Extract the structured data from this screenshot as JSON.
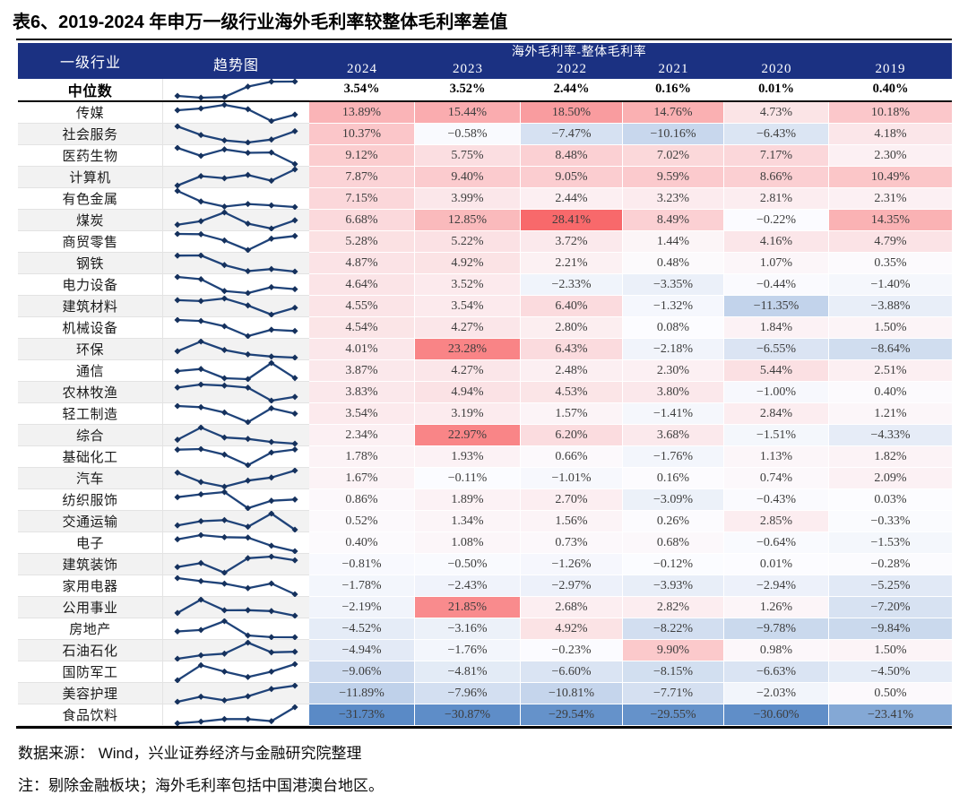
{
  "title": "表6、2019-2024 年申万一级行业海外毛利率较整体毛利率差值",
  "header": {
    "industry": "一级行业",
    "trend": "趋势图",
    "group": "海外毛利率-整体毛利率"
  },
  "footer": {
    "source": "数据来源：  Wind，兴业证券经济与金融研究院整理",
    "note": "注：剔除金融板块；海外毛利率包括中国港澳台地区。"
  },
  "colors": {
    "header_bg": "#1B3182",
    "heat_max_red": "#F8696B",
    "heat_mid_white": "#FCFCFF",
    "heat_min_blue": "#5A8AC6",
    "spark_line": "#1F4379",
    "spark_marker": "#15315D",
    "row_stripe": "#F2F2F2"
  },
  "heat_scale": {
    "min": -31.73,
    "mid": 0,
    "max": 28.41
  },
  "chart_data": {
    "type": "heatmap-table",
    "title": "海外毛利率-整体毛利率",
    "unit": "%",
    "columns": [
      "2024",
      "2023",
      "2022",
      "2021",
      "2020",
      "2019"
    ],
    "median": {
      "label": "中位数",
      "values": [
        3.54,
        3.52,
        2.44,
        0.16,
        0.01,
        0.4
      ],
      "spark_reverse": true
    },
    "rows": [
      {
        "label": "传媒",
        "values": [
          13.89,
          15.44,
          18.5,
          14.76,
          4.73,
          10.18
        ]
      },
      {
        "label": "社会服务",
        "values": [
          10.37,
          -0.58,
          -7.47,
          -10.16,
          -6.43,
          4.18
        ]
      },
      {
        "label": "医药生物",
        "values": [
          9.12,
          5.75,
          8.48,
          7.02,
          7.17,
          2.3
        ]
      },
      {
        "label": "计算机",
        "values": [
          7.87,
          9.4,
          9.05,
          9.59,
          8.66,
          10.49
        ]
      },
      {
        "label": "有色金属",
        "values": [
          7.15,
          3.99,
          2.44,
          3.23,
          2.81,
          2.31
        ]
      },
      {
        "label": "煤炭",
        "values": [
          6.68,
          12.85,
          28.41,
          8.49,
          -0.22,
          14.35
        ]
      },
      {
        "label": "商贸零售",
        "values": [
          5.28,
          5.22,
          3.72,
          1.44,
          4.16,
          4.79
        ]
      },
      {
        "label": "钢铁",
        "values": [
          4.87,
          4.92,
          2.21,
          0.48,
          1.07,
          0.35
        ]
      },
      {
        "label": "电力设备",
        "values": [
          4.64,
          3.52,
          -2.33,
          -3.35,
          -0.44,
          -1.4
        ]
      },
      {
        "label": "建筑材料",
        "values": [
          4.55,
          3.54,
          6.4,
          -1.32,
          -11.35,
          -3.88
        ]
      },
      {
        "label": "机械设备",
        "values": [
          4.54,
          4.27,
          2.8,
          0.08,
          1.84,
          1.5
        ]
      },
      {
        "label": "环保",
        "values": [
          4.01,
          23.28,
          6.43,
          -2.18,
          -6.55,
          -8.64
        ]
      },
      {
        "label": "通信",
        "values": [
          3.87,
          4.27,
          2.48,
          2.3,
          5.44,
          2.51
        ]
      },
      {
        "label": "农林牧渔",
        "values": [
          3.83,
          4.94,
          4.53,
          3.8,
          -1.0,
          0.4
        ]
      },
      {
        "label": "轻工制造",
        "values": [
          3.54,
          3.19,
          1.57,
          -1.41,
          2.84,
          1.21
        ]
      },
      {
        "label": "综合",
        "values": [
          2.34,
          22.97,
          6.2,
          3.68,
          -1.51,
          -4.33
        ]
      },
      {
        "label": "基础化工",
        "values": [
          1.78,
          1.93,
          0.66,
          -1.76,
          1.13,
          1.82
        ]
      },
      {
        "label": "汽车",
        "values": [
          1.67,
          -0.11,
          -1.01,
          0.16,
          0.74,
          2.09
        ]
      },
      {
        "label": "纺织服饰",
        "values": [
          0.86,
          1.89,
          2.7,
          -3.09,
          -0.43,
          0.03
        ]
      },
      {
        "label": "交通运输",
        "values": [
          0.52,
          1.34,
          1.56,
          0.26,
          2.85,
          -0.33
        ]
      },
      {
        "label": "电子",
        "values": [
          0.4,
          1.08,
          0.73,
          0.68,
          -0.64,
          -1.53
        ]
      },
      {
        "label": "建筑装饰",
        "values": [
          -0.81,
          -0.5,
          -1.26,
          -0.12,
          0.01,
          -0.28
        ]
      },
      {
        "label": "家用电器",
        "values": [
          -1.78,
          -2.43,
          -2.97,
          -3.93,
          -2.94,
          -5.25
        ]
      },
      {
        "label": "公用事业",
        "values": [
          -2.19,
          21.85,
          2.68,
          2.82,
          1.26,
          -7.2
        ]
      },
      {
        "label": "房地产",
        "values": [
          -4.52,
          -3.16,
          4.92,
          -8.22,
          -9.78,
          -9.84
        ]
      },
      {
        "label": "石油石化",
        "values": [
          -4.94,
          -1.76,
          -0.23,
          9.9,
          0.98,
          1.5
        ]
      },
      {
        "label": "国防军工",
        "values": [
          -9.06,
          -4.81,
          -6.6,
          -8.15,
          -6.63,
          -4.5
        ]
      },
      {
        "label": "美容护理",
        "values": [
          -11.89,
          -7.96,
          -10.81,
          -7.71,
          -2.03,
          0.5
        ]
      },
      {
        "label": "食品饮料",
        "values": [
          -31.73,
          -30.87,
          -29.54,
          -29.55,
          -30.6,
          -23.41
        ]
      }
    ]
  }
}
